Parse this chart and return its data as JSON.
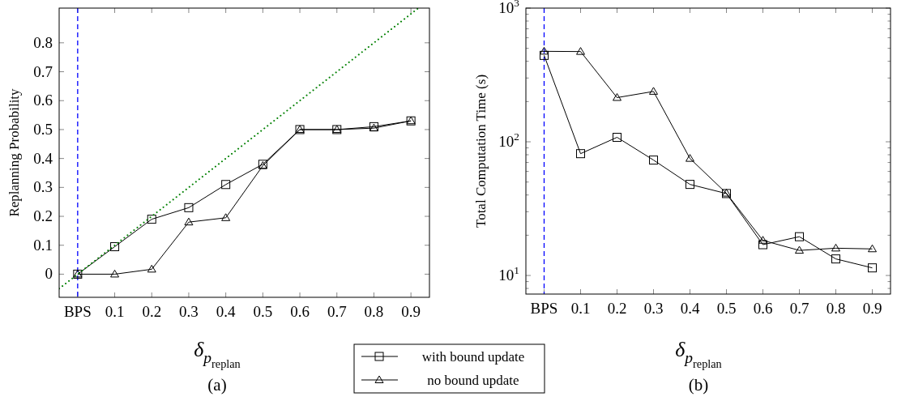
{
  "chart_data": [
    {
      "type": "line",
      "xlabel": "δ$_{p}$$_{replan}$",
      "ylabel": "Replanning Probability",
      "annotations": [
        "(a)"
      ],
      "x": [
        0,
        0.1,
        0.2,
        0.3,
        0.4,
        0.5,
        0.6,
        0.7,
        0.8,
        0.9
      ],
      "xlim": [
        -0.05,
        0.95
      ],
      "xticks": [
        {
          "value": 0,
          "label": "BPS"
        },
        0.1,
        0.2,
        0.3,
        0.4,
        0.5,
        0.6,
        0.7,
        0.8,
        0.9
      ],
      "ylim": [
        -0.08,
        0.92
      ],
      "yticks": [
        0,
        0.1,
        0.2,
        0.3,
        0.4,
        0.5,
        0.6,
        0.7,
        0.8
      ],
      "grid": false,
      "legend": "bottom",
      "series": [
        {
          "name": "with bound update",
          "color": "#000000",
          "marker": "square",
          "values": [
            0,
            0.095,
            0.19,
            0.23,
            0.31,
            0.38,
            0.5,
            0.5,
            0.51,
            0.53
          ]
        },
        {
          "name": "no bound update",
          "color": "#000000",
          "marker": "triangle",
          "values": [
            0,
            0,
            0.017,
            0.18,
            0.195,
            0.375,
            0.5,
            0.5,
            0.505,
            0.53
          ]
        },
        {
          "color": "#008000",
          "marker": "none",
          "line_style": "dotted",
          "x": [
            -0.05,
            0.92
          ],
          "values": [
            -0.05,
            0.92
          ]
        }
      ],
      "ref_lines": [
        {
          "axis": "x",
          "value": 0,
          "color": "#0000ff",
          "line_style": "dashed"
        }
      ]
    },
    {
      "type": "line",
      "xlabel": "δ$_{p}$$_{replan}$",
      "ylabel": "Total Computation Time (s)",
      "annotations": [
        "(b)"
      ],
      "x": [
        0,
        0.1,
        0.2,
        0.3,
        0.4,
        0.5,
        0.6,
        0.7,
        0.8,
        0.9
      ],
      "xlim": [
        -0.05,
        0.95
      ],
      "xticks": [
        {
          "value": 0,
          "label": "BPS"
        },
        0.1,
        0.2,
        0.3,
        0.4,
        0.5,
        0.6,
        0.7,
        0.8,
        0.9
      ],
      "log": "y",
      "ylim": [
        7.26,
        1000
      ],
      "yticks": [
        {
          "value": 8,
          "label": null
        },
        {
          "value": 9,
          "label": null
        },
        {
          "value": 10,
          "label": "10$^{1}$"
        },
        {
          "value": 20,
          "label": null
        },
        {
          "value": 30,
          "label": null
        },
        {
          "value": 40,
          "label": null
        },
        {
          "value": 50,
          "label": null
        },
        {
          "value": 60,
          "label": null
        },
        {
          "value": 70,
          "label": null
        },
        {
          "value": 80,
          "label": null
        },
        {
          "value": 90,
          "label": null
        },
        {
          "value": 100,
          "label": "10$^{2}$"
        },
        {
          "value": 200,
          "label": null
        },
        {
          "value": 300,
          "label": null
        },
        {
          "value": 400,
          "label": null
        },
        {
          "value": 500,
          "label": null
        },
        {
          "value": 600,
          "label": null
        },
        {
          "value": 700,
          "label": null
        },
        {
          "value": 800,
          "label": null
        },
        {
          "value": 900,
          "label": null
        },
        {
          "value": 1000,
          "label": "10$^{3}$"
        }
      ],
      "grid": false,
      "series": [
        {
          "color": "#000000",
          "marker": "square",
          "values": [
            443,
            81.5,
            108,
            73,
            48,
            41,
            17,
            19.5,
            13.3,
            11.4
          ]
        },
        {
          "color": "#000000",
          "marker": "triangle",
          "values": [
            475,
            473,
            214,
            238,
            75,
            41.2,
            18.3,
            15.4,
            16,
            15.8
          ]
        }
      ],
      "ref_lines": [
        {
          "axis": "x",
          "value": 0,
          "color": "#0000ff",
          "line_style": "dashed"
        }
      ]
    }
  ]
}
